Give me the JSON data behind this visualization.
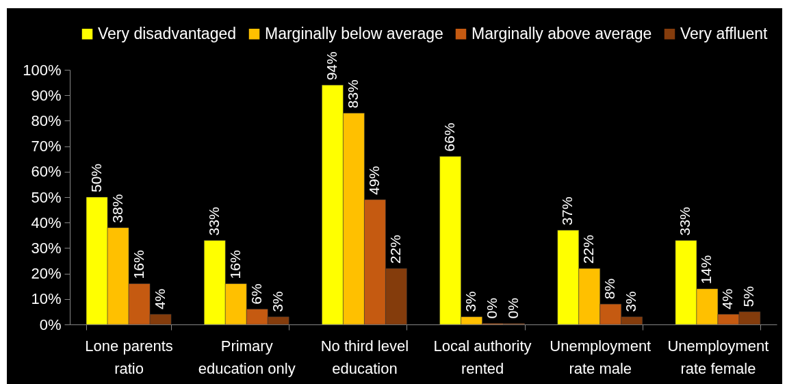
{
  "chart_data": {
    "type": "bar",
    "categories": [
      "Lone parents ratio",
      "Primary education only",
      "No third level education",
      "Local authority rented",
      "Unemployment rate male",
      "Unemployment rate female"
    ],
    "series": [
      {
        "name": "Very disadvantaged",
        "color": "#ffff00",
        "values": [
          50,
          33,
          94,
          66,
          37,
          33
        ],
        "value_labels": [
          "50%",
          "33%",
          "94%",
          "66%",
          "37%",
          "33%"
        ]
      },
      {
        "name": "Marginally below average",
        "color": "#ffc000",
        "values": [
          38,
          16,
          83,
          3,
          22,
          14
        ],
        "value_labels": [
          "38%",
          "16%",
          "83%",
          "3%",
          "22%",
          "14%"
        ]
      },
      {
        "name": "Marginally above average",
        "color": "#c55a11",
        "values": [
          16,
          6,
          49,
          0.4,
          8,
          4
        ],
        "value_labels": [
          "16%",
          "6%",
          "49%",
          "0%",
          "8%",
          "4%"
        ]
      },
      {
        "name": "Very affluent",
        "color": "#843c0c",
        "values": [
          4,
          3,
          22,
          0.4,
          3,
          5
        ],
        "value_labels": [
          "4%",
          "3%",
          "22%",
          "0%",
          "3%",
          "5%"
        ]
      }
    ],
    "ylim": [
      0,
      100
    ],
    "yticks": [
      {
        "value": 0,
        "label": "0%"
      },
      {
        "value": 10,
        "label": "10%"
      },
      {
        "value": 20,
        "label": "20%"
      },
      {
        "value": 30,
        "label": "30%"
      },
      {
        "value": 40,
        "label": "40%"
      },
      {
        "value": 50,
        "label": "50%"
      },
      {
        "value": 60,
        "label": "60%"
      },
      {
        "value": 70,
        "label": "70%"
      },
      {
        "value": 80,
        "label": "80%"
      },
      {
        "value": 90,
        "label": "90%"
      },
      {
        "value": 100,
        "label": "100%"
      }
    ],
    "grid": false,
    "legend": "top"
  }
}
